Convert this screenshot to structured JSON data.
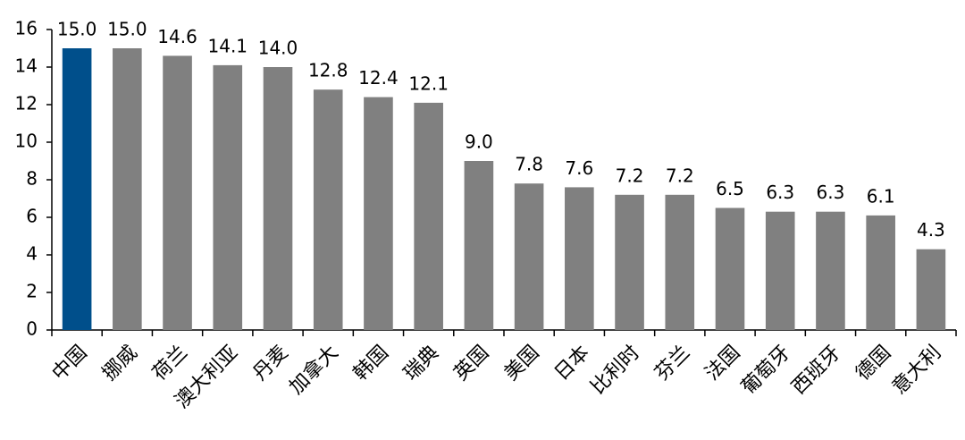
{
  "chart_data": {
    "type": "bar",
    "categories": [
      "中国",
      "挪威",
      "荷兰",
      "澳大利亚",
      "丹麦",
      "加拿大",
      "韩国",
      "瑞典",
      "英国",
      "美国",
      "日本",
      "比利时",
      "芬兰",
      "法国",
      "葡萄牙",
      "西班牙",
      "德国",
      "意大利"
    ],
    "values": [
      15.0,
      15.0,
      14.6,
      14.1,
      14.0,
      12.8,
      12.4,
      12.1,
      9.0,
      7.8,
      7.6,
      7.2,
      7.2,
      6.5,
      6.3,
      6.3,
      6.1,
      4.3
    ],
    "value_labels": [
      "15.0",
      "15.0",
      "14.6",
      "14.1",
      "14.0",
      "12.8",
      "12.4",
      "12.1",
      "9.0",
      "7.8",
      "7.6",
      "7.2",
      "7.2",
      "6.5",
      "6.3",
      "6.3",
      "6.1",
      "4.3"
    ],
    "colors": [
      "#004f8b",
      "#808080",
      "#808080",
      "#808080",
      "#808080",
      "#808080",
      "#808080",
      "#808080",
      "#808080",
      "#808080",
      "#808080",
      "#808080",
      "#808080",
      "#808080",
      "#808080",
      "#808080",
      "#808080",
      "#808080"
    ],
    "ylim": [
      0,
      16
    ],
    "yticks": [
      0,
      2,
      4,
      6,
      8,
      10,
      12,
      14,
      16
    ],
    "grid": false
  }
}
